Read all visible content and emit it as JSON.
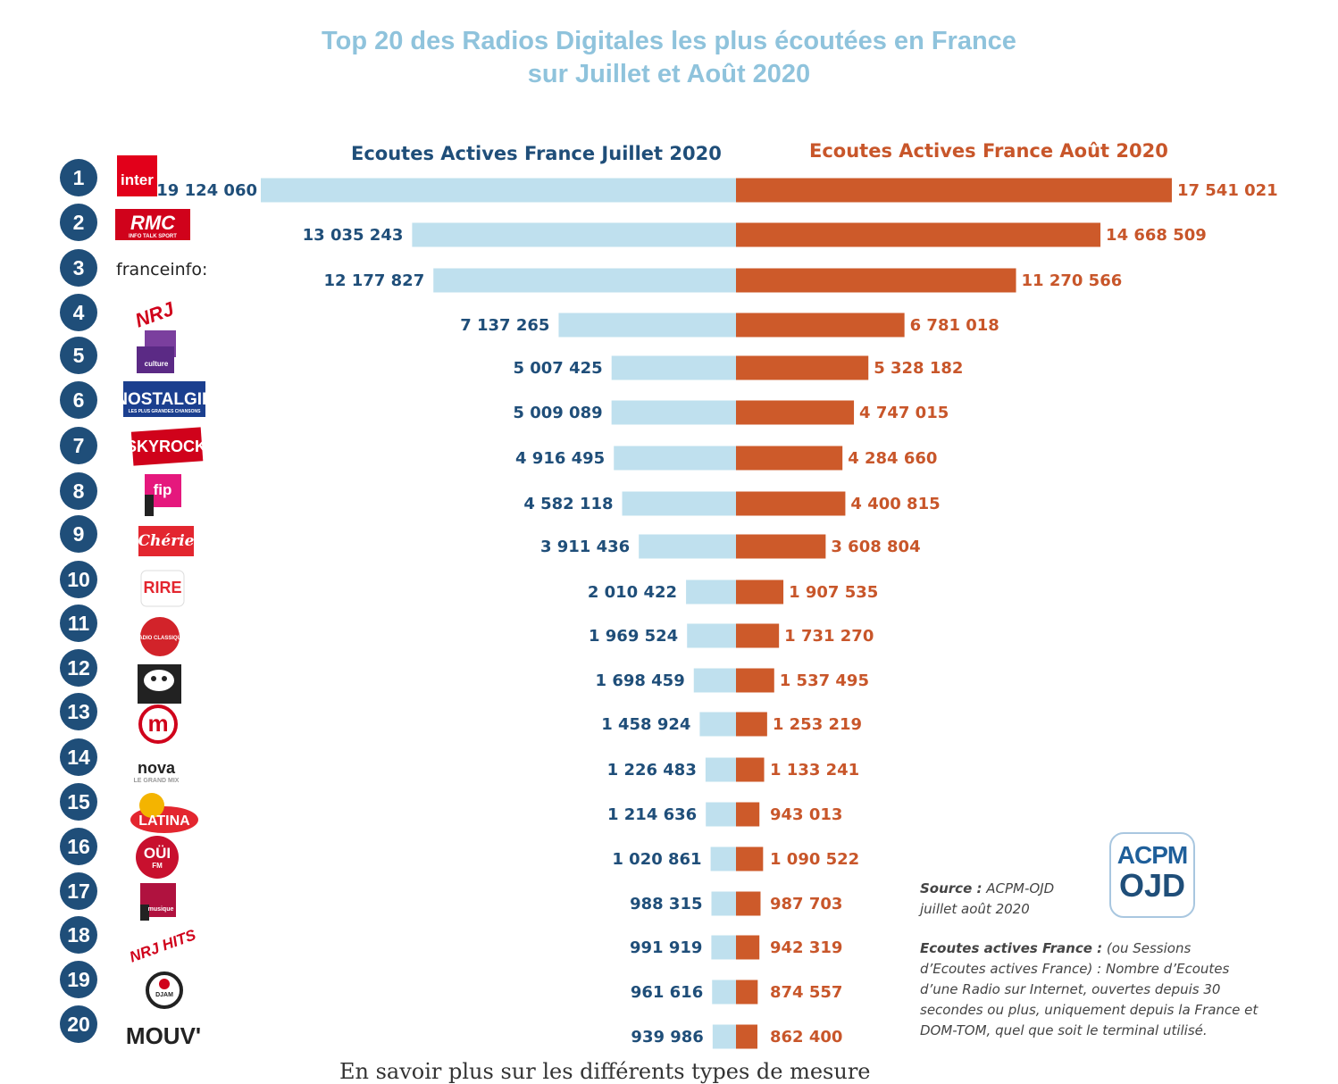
{
  "title": {
    "line1": "Top 20 des Radios Digitales les plus écoutées en France",
    "line2": "sur Juillet et Août 2020"
  },
  "colors": {
    "title": "#8fc3dc",
    "left_bar": "#bfe0ee",
    "right_bar": "#cd5a2a",
    "left_text": "#1f4e79",
    "right_text": "#c8562a",
    "rank_circle": "#1f4e79"
  },
  "chart_data": {
    "type": "bar",
    "orientation": "horizontal, back-to-back",
    "categories": [
      "1",
      "2",
      "3",
      "4",
      "5",
      "6",
      "7",
      "8",
      "9",
      "10",
      "11",
      "12",
      "13",
      "14",
      "15",
      "16",
      "17",
      "18",
      "19",
      "20"
    ],
    "series": [
      {
        "name": "Ecoutes Actives France Juillet 2020",
        "side": "left",
        "values": [
          19124060,
          13035243,
          12177827,
          7137265,
          5007425,
          5009089,
          4916495,
          4582118,
          3911436,
          2010422,
          1969524,
          1698459,
          1458924,
          1226483,
          1214636,
          1020861,
          988315,
          991919,
          961616,
          939986
        ],
        "labels": [
          "19 124 060",
          "13 035 243",
          "12 177 827",
          "7 137 265",
          "5 007 425",
          "5 009 089",
          "4 916 495",
          "4 582 118",
          "3 911 436",
          "2 010 422",
          "1 969 524",
          "1 698 459",
          "1 458 924",
          "1 226 483",
          "1 214 636",
          "1 020 861",
          "988 315",
          "991 919",
          "961 616",
          "939 986"
        ]
      },
      {
        "name": "Ecoutes Actives France Août 2020",
        "side": "right",
        "values": [
          17541021,
          14668509,
          11270566,
          6781018,
          5328182,
          4747015,
          4284660,
          4400815,
          3608804,
          1907535,
          1731270,
          1537495,
          1253219,
          1133241,
          943013,
          1090522,
          987703,
          942319,
          874557,
          862400
        ],
        "labels": [
          "17 541 021",
          "14 668 509",
          "11 270 566",
          "6 781 018",
          "5 328 182",
          "4 747 015",
          "4 284 660",
          "4 400 815",
          "3 608 804",
          "1 907 535",
          "1 731 270",
          "1 537 495",
          "1 253 219",
          "1 133 241",
          "943 013",
          "1 090 522",
          "987 703",
          "942 319",
          "874 557",
          "862 400"
        ]
      }
    ],
    "logos": [
      {
        "name": "france-inter-logo",
        "text": "inter"
      },
      {
        "name": "rmc-logo",
        "text": "RMC",
        "sub": "INFO TALK SPORT"
      },
      {
        "name": "franceinfo-logo",
        "text": "franceinfo:"
      },
      {
        "name": "nrj-logo",
        "text": "NRJ"
      },
      {
        "name": "france-culture-logo",
        "text": "culture"
      },
      {
        "name": "nostalgie-logo",
        "text": "NOSTALGIE",
        "sub": "LES PLUS GRANDES CHANSONS"
      },
      {
        "name": "skyrock-logo",
        "text": "SKYROCK"
      },
      {
        "name": "fip-logo",
        "text": "fip"
      },
      {
        "name": "cherie-logo",
        "text": "Chérie"
      },
      {
        "name": "rire-et-chansons-logo",
        "text": "RIRE"
      },
      {
        "name": "radio-classique-logo",
        "text": "RADIO CLASSIQUE"
      },
      {
        "name": "radio-cow-logo",
        "text": ""
      },
      {
        "name": "m-radio-logo",
        "text": "m"
      },
      {
        "name": "nova-logo",
        "text": "nova",
        "sub": "LE GRAND MIX"
      },
      {
        "name": "latina-logo",
        "text": "LATINA"
      },
      {
        "name": "oui-fm-logo",
        "text": "OÜI",
        "sub": "FM"
      },
      {
        "name": "france-musique-logo",
        "text": "musique"
      },
      {
        "name": "nrj-hits-logo",
        "text": "NRJ HITS"
      },
      {
        "name": "djam-radio-logo",
        "text": "DJAM"
      },
      {
        "name": "mouv-logo",
        "text": "MOUV'"
      }
    ]
  },
  "source": {
    "label": "Source :",
    "text": "ACPM-OJD",
    "period": "juillet août 2020"
  },
  "definition": {
    "label": "Ecoutes actives France :",
    "text": "(ou Sessions d’Ecoutes actives France) : Nombre d’Ecoutes d’une Radio sur Internet, ouvertes depuis 30 secondes ou plus, uniquement depuis la France et DOM-TOM, quel que soit le terminal utilisé."
  },
  "acpm_logo": {
    "line1": "ACPM",
    "line2": "OJD"
  },
  "cut_footer": "En savoir plus sur les différents types de mesure"
}
